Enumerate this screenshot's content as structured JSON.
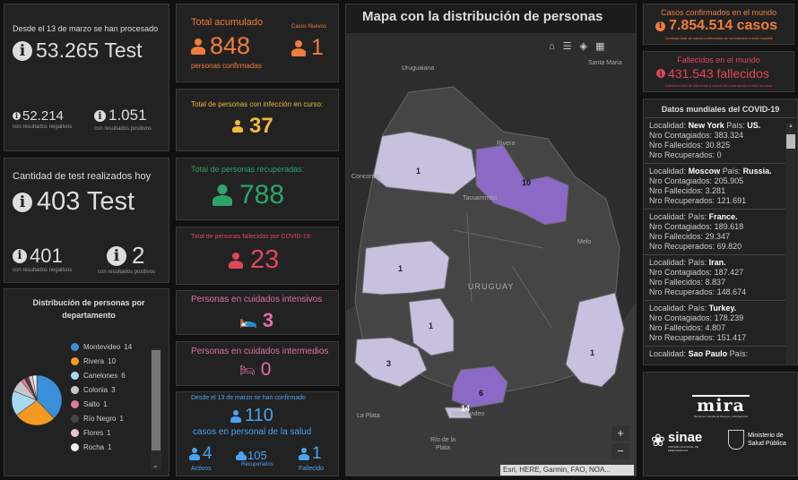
{
  "tests_total": {
    "caption": "Desde el 13 de marzo se han procesado",
    "value": "53.265 Test",
    "neg_value": "52.214",
    "neg_label": "con resultados negativos",
    "pos_value": "1.051",
    "pos_label": "con resultados positivos"
  },
  "tests_today": {
    "caption": "Cantidad de test realizados hoy",
    "value": "403 Test",
    "neg_value": "401",
    "neg_label": "con resultados negativos",
    "pos_value": "2",
    "pos_label": "con resultados positivos"
  },
  "dept_dist": {
    "title": "Distribución de personas por departamento",
    "items": [
      {
        "label": "Montevideo",
        "count": "14",
        "value": 14,
        "color": "#3b8fd9"
      },
      {
        "label": "Rivera",
        "count": "10",
        "value": 10,
        "color": "#f29a21"
      },
      {
        "label": "Canelones",
        "count": "6",
        "value": 6,
        "color": "#a8d8f0"
      },
      {
        "label": "Colonia",
        "count": "3",
        "value": 3,
        "color": "#c7c7c7"
      },
      {
        "label": "Salto",
        "count": "1",
        "value": 1,
        "color": "#e07a9a"
      },
      {
        "label": "Río Negro",
        "count": "1",
        "value": 1,
        "color": "#444444"
      },
      {
        "label": "Flores",
        "count": "1",
        "value": 1,
        "color": "#f0c0d0"
      },
      {
        "label": "Rocha",
        "count": "1",
        "value": 1,
        "color": "#f0f0f0"
      }
    ]
  },
  "acumulado": {
    "title": "Total acumulado",
    "value": "848",
    "subtitle": "personas confirmadas",
    "new_title": "Casos Nuevos",
    "new_value": "1",
    "color": "#f07d3c"
  },
  "infeccion": {
    "title": "Total de personas con infección en curso:",
    "value": "37",
    "color": "#f2b93b"
  },
  "recuperadas": {
    "title": "Total de personas recuperadas:",
    "value": "788",
    "color": "#2ea36b"
  },
  "fallecidas": {
    "title": "Total de personas fallecidas por COVID-19:",
    "value": "23",
    "color": "#e0475b"
  },
  "cuidados_intensivos": {
    "title": "Personas en cuidados intensivos",
    "value": "3",
    "color": "#e26fa8"
  },
  "cuidados_intermedios": {
    "title": "Personas en cuidados intermedios",
    "value": "0",
    "color": "#e26fa8"
  },
  "salud": {
    "caption": "Desde el 13 de marzo se han confirmado",
    "value": "110",
    "subtitle": "casos en personal de la salud",
    "activos_value": "4",
    "activos_label": "Activos",
    "recuperados_value": "105",
    "recuperados_label": "Recuperados",
    "fallecido_value": "1",
    "fallecido_label": "Fallecido",
    "color": "#4aa3f0"
  },
  "map": {
    "title": "Mapa con la distribución de personas",
    "attribution": "Esri, HERE, Garmin, FAO, NOA...",
    "zoom_in": "+",
    "zoom_out": "−",
    "places": [
      "Uruguaiana",
      "Santa Maria",
      "Concordia",
      "Rivera",
      "Tacuarembó",
      "Melo",
      "URUGUAY",
      "La Plata",
      "Montevideo",
      "Río de la Plata"
    ],
    "counts": [
      "1",
      "10",
      "1",
      "1",
      "3",
      "6",
      "1",
      "14"
    ]
  },
  "world_cases": {
    "title": "Casos confirmados en el mundo",
    "value": "7.854.514 casos",
    "note": "Cantidad total de casos confirmados de coronavirus a nivel mundial.",
    "color": "#f07d3c"
  },
  "world_deaths": {
    "title": "Fallecidos en el mundo",
    "value": "431.543 fallecidos",
    "note": "Cantidad total de fallecidos a causa del coronavirus a nivel mundial.",
    "color": "#e0475b"
  },
  "world_list": {
    "title": "Datos mundiales del COVID-19",
    "lbl_loc": "Localidad:",
    "lbl_pais": "País:",
    "lbl_cont": "Nro Contagiados:",
    "lbl_fall": "Nro Fallecidos:",
    "lbl_rec": "Nro Recuperados:",
    "items": [
      {
        "loc": "New York",
        "pais": "US.",
        "cont": "383.324",
        "fall": "30.825",
        "rec": "0"
      },
      {
        "loc": "Moscow",
        "pais": "Russia.",
        "cont": "205.905",
        "fall": "3.281",
        "rec": "121.691"
      },
      {
        "loc": "",
        "pais": "France.",
        "cont": "189.618",
        "fall": "29.347",
        "rec": "69.820"
      },
      {
        "loc": "",
        "pais": "Iran.",
        "cont": "187.427",
        "fall": "8.837",
        "rec": "148.674"
      },
      {
        "loc": "",
        "pais": "Turkey.",
        "cont": "178.239",
        "fall": "4.807",
        "rec": "151.417"
      },
      {
        "loc": "Sao Paulo",
        "pais": "",
        "cont": "",
        "fall": "",
        "rec": ""
      }
    ]
  },
  "logos": {
    "mira": "mira",
    "mira_sub": "Monitoreo Integral de Riesgos y Afectaciones",
    "sinae": "sinae",
    "sinae_sub": "SISTEMA NACIONAL DE EMERGENCIAS",
    "msp": "Ministerio de Salud Pública"
  }
}
